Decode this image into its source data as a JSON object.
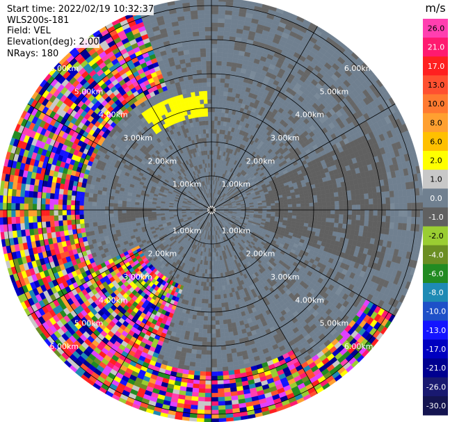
{
  "header": {
    "start_time": "Start time: 2022/02/19 10:32:37",
    "instrument": "WLS200s-181",
    "field": "Field: VEL",
    "elevation": "Elevation(deg): 2.00",
    "nrays": "NRays: 180"
  },
  "chart_data": {
    "type": "heatmap",
    "projection": "polar-ppi",
    "title": "",
    "field": "VEL",
    "elevation_deg": 2.0,
    "n_rays": 180,
    "range_rings_km": [
      1,
      2,
      3,
      4,
      5,
      6
    ],
    "range_ring_labels": [
      "1.00km",
      "2.00km",
      "3.00km",
      "4.00km",
      "5.00km",
      "6.00km"
    ],
    "max_range_km": 6.5,
    "grid": true,
    "colorbar": {
      "unit": "m/s",
      "ticks": [
        "26.0",
        "21.0",
        "17.0",
        "13.0",
        "10.0",
        "8.0",
        "6.0",
        "2.0",
        "1.0",
        "0.0",
        "-1.0",
        "-2.0",
        "-4.0",
        "-6.0",
        "-8.0",
        "-10.0",
        "-13.0",
        "-17.0",
        "-21.0",
        "-26.0",
        "-30.0"
      ],
      "colors": [
        "#ff3fb0",
        "#ff1a70",
        "#ff2020",
        "#ff5030",
        "#ff7a30",
        "#ffa030",
        "#ffc000",
        "#ffff00",
        "#c8c8c8",
        "#708090",
        "#606060",
        "#9acd32",
        "#6b8e23",
        "#228b22",
        "#1e8ab4",
        "#1e50c8",
        "#1414ff",
        "#0000c0",
        "#000090",
        "#191970",
        "#141450"
      ]
    },
    "regions": [
      {
        "description": "noise",
        "sectors_deg": [
          [
            200,
            340
          ]
        ],
        "range_km": [
          3.8,
          6.5
        ]
      },
      {
        "description": "noise",
        "sectors_deg": [
          [
            150,
            200
          ]
        ],
        "range_km": [
          4.8,
          6.5
        ]
      },
      {
        "description": "noise",
        "sectors_deg": [
          [
            120,
            150
          ]
        ],
        "range_km": [
          5.3,
          6.5
        ]
      },
      {
        "description": "noise",
        "sectors_deg": [
          [
            200,
            245
          ]
        ],
        "range_km": [
          2.4,
          4.0
        ]
      },
      {
        "description": "approaching",
        "value_ms": -1.5,
        "sectors_deg": [
          [
            65,
            110
          ]
        ],
        "range_km": [
          1.6,
          5.2
        ]
      },
      {
        "description": "approaching",
        "value_ms": -1.5,
        "sectors_deg": [
          [
            262,
            272
          ]
        ],
        "range_km": [
          1.6,
          2.8
        ]
      },
      {
        "description": "receding",
        "value_ms": 2.0,
        "sectors_deg": [
          [
            325,
            358
          ]
        ],
        "range_km": [
          2.8,
          3.5
        ]
      }
    ],
    "background_value_ms": 0.0
  }
}
